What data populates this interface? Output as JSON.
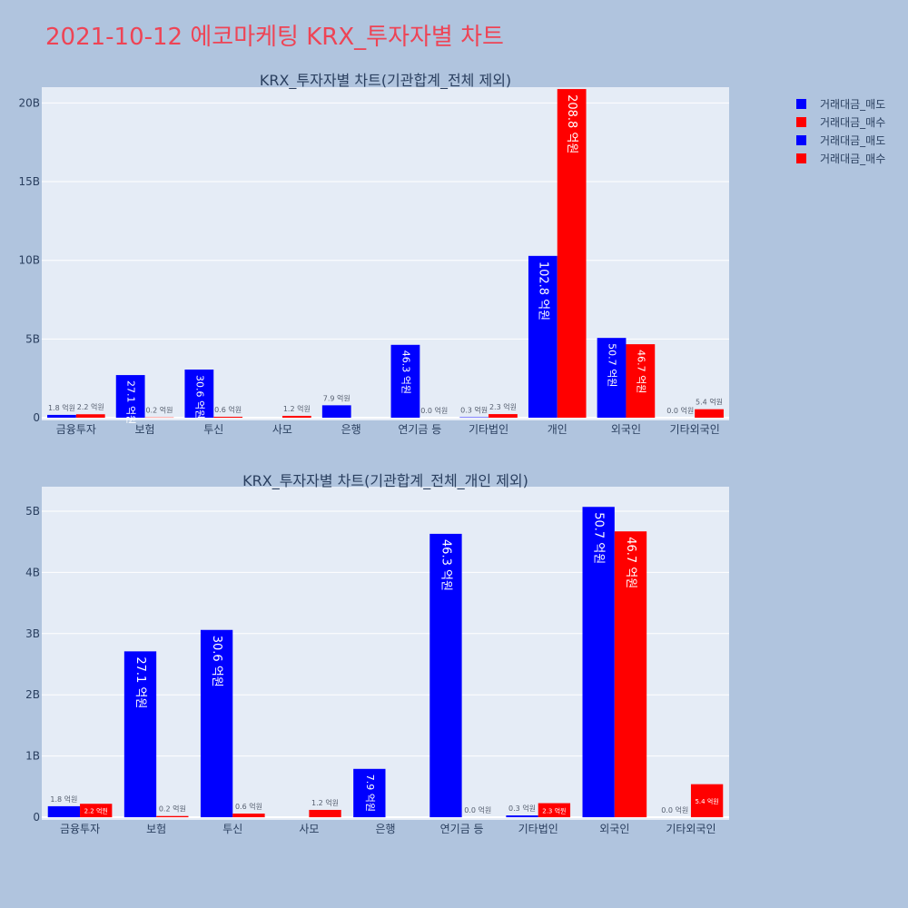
{
  "title": "2021-10-12 에코마케팅 KRX_투자자별 차트",
  "legend": [
    {
      "label": "거래대금_매도",
      "color": "#0000ff"
    },
    {
      "label": "거래대금_매수",
      "color": "#ff0000"
    },
    {
      "label": "거래대금_매도",
      "color": "#0000ff"
    },
    {
      "label": "거래대금_매수",
      "color": "#ff0000"
    }
  ],
  "chart_data": [
    {
      "type": "bar",
      "title": "KRX_투자자별 차트(기관합계_전체 제외)",
      "categories": [
        "금융투자",
        "보험",
        "투신",
        "사모",
        "은행",
        "연기금 등",
        "기타법인",
        "개인",
        "외국인",
        "기타외국인"
      ],
      "series": [
        {
          "name": "거래대금_매도",
          "color": "#0000ff",
          "values": [
            0.18,
            2.71,
            3.06,
            0,
            0.79,
            4.63,
            0.03,
            10.28,
            5.07,
            0.0
          ],
          "labels": [
            "1.8 억원",
            "27.1 억원",
            "30.6 억원",
            "",
            "7.9 억원",
            "46.3 억원",
            "0.3 억원",
            "102.8 억원",
            "50.7 억원",
            "0.0 억원"
          ]
        },
        {
          "name": "거래대금_매수",
          "color": "#ff0000",
          "values": [
            0.22,
            0.02,
            0.06,
            0.12,
            0,
            0.0,
            0.23,
            20.88,
            4.67,
            0.54
          ],
          "labels": [
            "2.2 억원",
            "0.2 억원",
            "0.6 억원",
            "1.2 억원",
            "",
            "0.0 억원",
            "2.3 억원",
            "208.8 억원",
            "46.7 억원",
            "5.4 억원"
          ]
        }
      ],
      "yunit": "billion",
      "ylim": [
        0,
        21
      ],
      "yticks": [
        0,
        5,
        10,
        15,
        20
      ],
      "ytick_labels": [
        "0",
        "5B",
        "10B",
        "15B",
        "20B"
      ],
      "grid": true,
      "legend": "top-right"
    },
    {
      "type": "bar",
      "title": "KRX_투자자별 차트(기관합계_전체_개인 제외)",
      "categories": [
        "금융투자",
        "보험",
        "투신",
        "사모",
        "은행",
        "연기금 등",
        "기타법인",
        "외국인",
        "기타외국인"
      ],
      "series": [
        {
          "name": "거래대금_매도",
          "color": "#0000ff",
          "values": [
            0.18,
            2.71,
            3.06,
            0,
            0.79,
            4.63,
            0.03,
            5.07,
            0.0
          ],
          "labels": [
            "1.8 억원",
            "27.1 억원",
            "30.6 억원",
            "",
            "7.9 억원",
            "46.3 억원",
            "0.3 억원",
            "50.7 억원",
            "0.0 억원"
          ]
        },
        {
          "name": "거래대금_매수",
          "color": "#ff0000",
          "values": [
            0.22,
            0.02,
            0.06,
            0.12,
            0,
            0.0,
            0.23,
            4.67,
            0.54
          ],
          "labels": [
            "2.2 억원",
            "0.2 억원",
            "0.6 억원",
            "1.2 억원",
            "",
            "0.0 억원",
            "2.3 억원",
            "46.7 억원",
            "5.4 억원"
          ]
        }
      ],
      "yunit": "billion",
      "ylim": [
        0,
        5.4
      ],
      "yticks": [
        0,
        1,
        2,
        3,
        4,
        5
      ],
      "ytick_labels": [
        "0",
        "1B",
        "2B",
        "3B",
        "4B",
        "5B"
      ],
      "grid": true,
      "legend": "top-right"
    }
  ]
}
